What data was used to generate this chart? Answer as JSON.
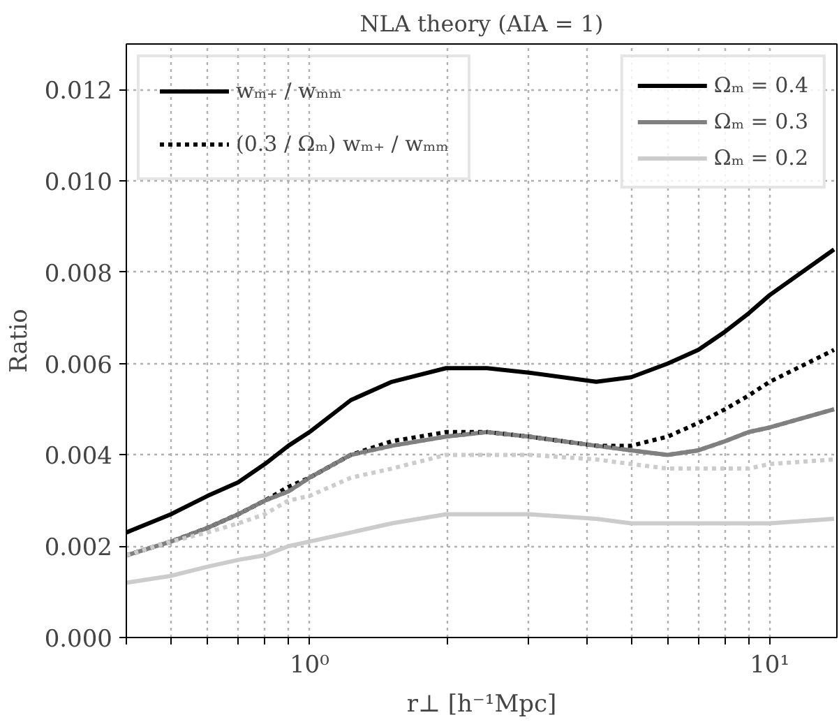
{
  "chart_data": {
    "type": "line",
    "title": "NLA theory (AIA = 1)",
    "xlabel": "r⊥ [h⁻¹Mpc]",
    "ylabel": "Ratio",
    "log": "x",
    "grid": true,
    "legend": "top right",
    "xlim": [
      0.4,
      14
    ],
    "xticks": [
      {
        "value": 0.4,
        "label": null
      },
      {
        "value": 0.5,
        "label": null
      },
      {
        "value": 0.6,
        "label": null
      },
      {
        "value": 0.7,
        "label": null
      },
      {
        "value": 0.8,
        "label": null
      },
      {
        "value": 0.9,
        "label": null
      },
      {
        "value": 1,
        "label": "10⁰"
      },
      {
        "value": 2,
        "label": null
      },
      {
        "value": 3,
        "label": null
      },
      {
        "value": 4,
        "label": null
      },
      {
        "value": 5,
        "label": null
      },
      {
        "value": 6,
        "label": null
      },
      {
        "value": 7,
        "label": null
      },
      {
        "value": 8,
        "label": null
      },
      {
        "value": 9,
        "label": null
      },
      {
        "value": 10,
        "label": "10¹"
      }
    ],
    "ylim": [
      0,
      0.013
    ],
    "yticks": [
      {
        "value": 0,
        "label": "0.000"
      },
      {
        "value": 0.002,
        "label": "0.002"
      },
      {
        "value": 0.004,
        "label": "0.004"
      },
      {
        "value": 0.006,
        "label": "0.006"
      },
      {
        "value": 0.008,
        "label": "0.008"
      },
      {
        "value": 0.01,
        "label": "0.010"
      },
      {
        "value": 0.012,
        "label": "0.012"
      }
    ],
    "x": [
      0.4,
      0.5,
      0.6,
      0.7,
      0.8,
      0.9,
      1,
      1.23,
      1.51,
      1.98,
      2.43,
      3,
      4.2,
      5,
      6,
      7,
      8,
      9,
      10,
      13.8
    ],
    "annotations": [
      "wₘ₊ / wₘₘ",
      "(0.3 / Ωₘ) wₘ₊ / wₘₘ"
    ],
    "series": [
      {
        "name": "Ωₘ = 0.4",
        "color": "#000000",
        "line_style": "solid",
        "values": [
          0.0023,
          0.0027,
          0.0031,
          0.0034,
          0.0038,
          0.0042,
          0.0045,
          0.0052,
          0.0056,
          0.0059,
          0.0059,
          0.0058,
          0.0056,
          0.0057,
          0.006,
          0.0063,
          0.0067,
          0.0071,
          0.0075,
          0.0085
        ]
      },
      {
        "name": "Ωₘ = 0.3",
        "color": "#808080",
        "line_style": "solid",
        "values": [
          0.0018,
          0.0021,
          0.0024,
          0.0027,
          0.003,
          0.0032,
          0.0035,
          0.004,
          0.0042,
          0.0044,
          0.0045,
          0.0044,
          0.0042,
          0.0041,
          0.004,
          0.0041,
          0.0043,
          0.0045,
          0.0046,
          0.005
        ]
      },
      {
        "name": "Ωₘ = 0.2",
        "color": "#cccccc",
        "line_style": "solid",
        "values": [
          0.0012,
          0.00135,
          0.00155,
          0.0017,
          0.0018,
          0.002,
          0.0021,
          0.0023,
          0.0025,
          0.0027,
          0.0027,
          0.0027,
          0.0026,
          0.0025,
          0.0025,
          0.0025,
          0.0025,
          0.0025,
          0.0025,
          0.0026
        ]
      },
      {
        "color": "#000000",
        "line_style": "dotted",
        "values": [
          0.0018,
          0.0021,
          0.0024,
          0.0027,
          0.003,
          0.0033,
          0.0035,
          0.004,
          0.0043,
          0.0045,
          0.0045,
          0.0044,
          0.0042,
          0.0042,
          0.0044,
          0.0047,
          0.005,
          0.0053,
          0.0056,
          0.0063
        ]
      },
      {
        "color": "#808080",
        "line_style": "dotted",
        "values": [
          0.0018,
          0.0021,
          0.0024,
          0.0027,
          0.003,
          0.0032,
          0.0035,
          0.004,
          0.0042,
          0.0044,
          0.0045,
          0.0044,
          0.0042,
          0.0041,
          0.004,
          0.0041,
          0.0043,
          0.0045,
          0.0046,
          0.005
        ]
      },
      {
        "color": "#cccccc",
        "line_style": "dotted",
        "values": [
          0.0018,
          0.0021,
          0.0023,
          0.0025,
          0.0027,
          0.003,
          0.0031,
          0.0035,
          0.0037,
          0.004,
          0.004,
          0.004,
          0.0039,
          0.0038,
          0.0037,
          0.0037,
          0.0037,
          0.0037,
          0.0038,
          0.0039
        ]
      }
    ]
  }
}
